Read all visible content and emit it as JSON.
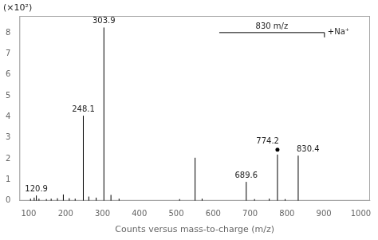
{
  "chart_data": {
    "type": "stem",
    "x_label": "Counts versus mass-to-charge (m/z)",
    "y_label": "(×10²)",
    "x": [
      105,
      115,
      120.9,
      128,
      148,
      161,
      178,
      194,
      210,
      226,
      248.1,
      263,
      283,
      303.9,
      323,
      345,
      509,
      551,
      570,
      689.6,
      712,
      752,
      774.2,
      795,
      830.4
    ],
    "values": [
      0.1,
      0.15,
      0.25,
      0.1,
      0.08,
      0.1,
      0.12,
      0.3,
      0.12,
      0.1,
      4.05,
      0.2,
      0.15,
      8.25,
      0.28,
      0.1,
      0.08,
      2.05,
      0.1,
      0.9,
      0.08,
      0.1,
      2.2,
      0.08,
      2.15
    ],
    "color": "black",
    "xlim": [
      75,
      1025
    ],
    "ylim": [
      0,
      8.8
    ],
    "xticks": [
      100,
      200,
      300,
      400,
      500,
      600,
      700,
      800,
      900,
      1000
    ],
    "yticks": [
      0,
      1,
      2,
      3,
      4,
      5,
      6,
      7,
      8
    ],
    "grid": false,
    "annotations": [
      {
        "x": 120.9,
        "y": 0.25,
        "text": "120.9"
      },
      {
        "x": 248.1,
        "y": 4.05,
        "text": "248.1"
      },
      {
        "x": 303.9,
        "y": 8.25,
        "text": "303.9"
      },
      {
        "x": 689.6,
        "y": 0.9,
        "text": "689.6"
      },
      {
        "x": 774.2,
        "y": 2.2,
        "text": "774.2",
        "marker": "dot"
      },
      {
        "x": 830.4,
        "y": 2.15,
        "text": "830.4"
      }
    ],
    "bracket_label": "830 m/z",
    "bracket_note": "+Na⁺"
  }
}
